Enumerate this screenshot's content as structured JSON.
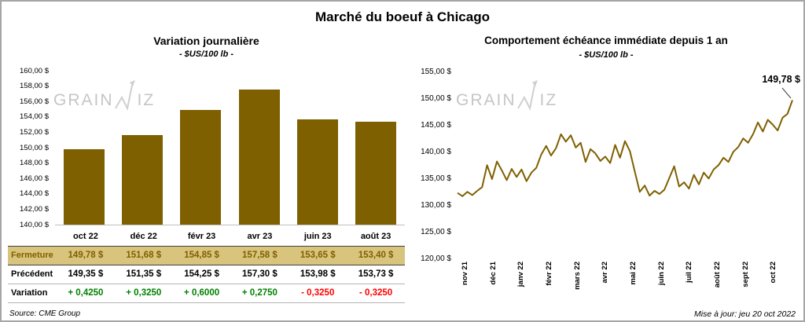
{
  "page": {
    "title": "Marché du boeuf à Chicago",
    "source": "Source: CME Group",
    "updated": "Mise à jour: jeu 20 oct 2022",
    "watermark": {
      "before": "GRAIN",
      "after": "IZ"
    }
  },
  "colors": {
    "accent": "#7F6000",
    "positive": "#008000",
    "negative": "#FF0000",
    "highlight_bg": "#D9C47D",
    "watermark": "#C6C6C6"
  },
  "chart_data": [
    {
      "type": "bar",
      "title": "Variation journalière",
      "subtitle": "- $US/100 lb -",
      "series_name": "Fermeture",
      "categories": [
        "oct 22",
        "déc 22",
        "févr 23",
        "avr 23",
        "juin 23",
        "août 23"
      ],
      "values": [
        149.78,
        151.68,
        154.85,
        157.58,
        153.65,
        153.4
      ],
      "ylim": [
        140,
        160
      ],
      "ytick_step": 2,
      "y_tick_labels": [
        "160,00 $",
        "158,00 $",
        "156,00 $",
        "154,00 $",
        "152,00 $",
        "150,00 $",
        "148,00 $",
        "146,00 $",
        "144,00 $",
        "142,00 $",
        "140,00 $"
      ],
      "bar_color": "#7F6000",
      "grid": false,
      "legend": false
    },
    {
      "type": "line",
      "title": "Comportement échéance immédiate depuis 1 an",
      "subtitle": "- $US/100 lb -",
      "x_labels": [
        "nov 21",
        "déc 21",
        "janv 22",
        "févr 22",
        "mars 22",
        "avr 22",
        "mai 22",
        "juin 22",
        "juil 22",
        "août 22",
        "sept 22",
        "oct 22"
      ],
      "values": [
        132.4,
        131.8,
        132.6,
        132.0,
        132.8,
        133.5,
        137.6,
        135.0,
        138.3,
        136.6,
        134.8,
        136.9,
        135.4,
        136.8,
        134.6,
        136.2,
        137.1,
        139.6,
        141.2,
        139.4,
        140.8,
        143.4,
        142.0,
        143.2,
        140.9,
        141.8,
        138.2,
        140.6,
        139.8,
        138.4,
        139.2,
        138.0,
        141.4,
        139.0,
        142.1,
        140.2,
        136.4,
        132.6,
        133.8,
        131.9,
        132.8,
        132.2,
        133.0,
        135.2,
        137.4,
        133.6,
        134.4,
        133.2,
        135.8,
        134.0,
        136.2,
        135.1,
        136.8,
        137.6,
        139.0,
        138.2,
        140.1,
        141.0,
        142.6,
        141.8,
        143.4,
        145.6,
        143.9,
        146.1,
        145.2,
        144.1,
        146.5,
        147.2,
        149.78
      ],
      "last_value": 149.78,
      "annotation": {
        "text": "149,78 $"
      },
      "ylim": [
        120,
        155
      ],
      "ytick_step": 5,
      "y_tick_labels": [
        "155,00 $",
        "150,00 $",
        "145,00 $",
        "140,00 $",
        "135,00 $",
        "130,00 $",
        "125,00 $",
        "120,00 $"
      ],
      "line_color": "#7F6000",
      "grid": false,
      "legend": false
    }
  ],
  "table": {
    "rows": [
      {
        "label": "Fermeture",
        "values": [
          "149,78 $",
          "151,68 $",
          "154,85 $",
          "157,58 $",
          "153,65 $",
          "153,40 $"
        ]
      },
      {
        "label": "Précédent",
        "values": [
          "149,35 $",
          "151,35 $",
          "154,25 $",
          "157,30 $",
          "153,98 $",
          "153,73 $"
        ]
      },
      {
        "label": "Variation",
        "values": [
          "+ 0,4250",
          "+ 0,3250",
          "+ 0,6000",
          "+ 0,2750",
          "- 0,3250",
          "- 0,3250"
        ]
      }
    ]
  }
}
